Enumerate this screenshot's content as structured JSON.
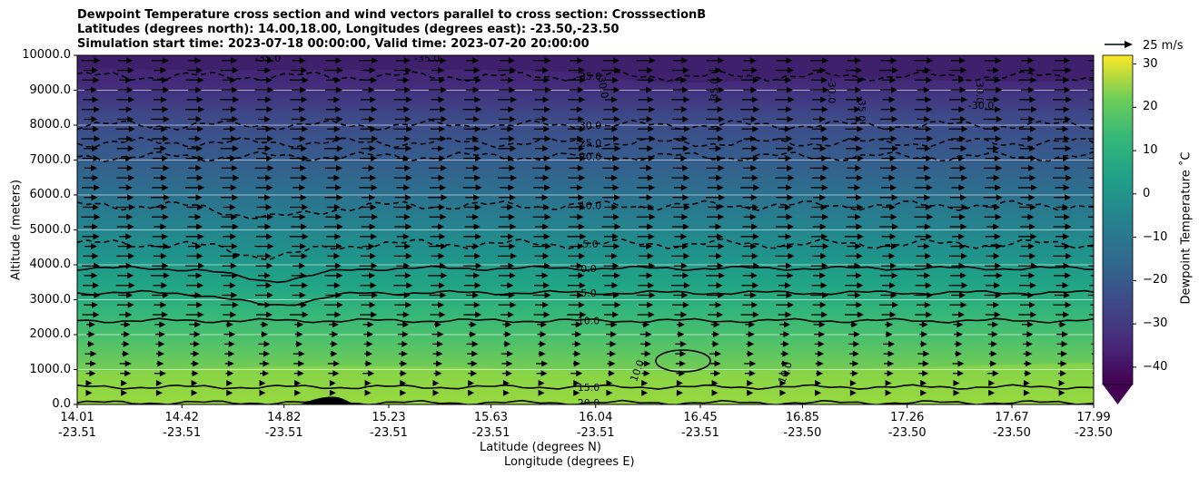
{
  "chart_data": {
    "type": "contourf",
    "title_lines": [
      "Dewpoint Temperature cross section and wind vectors parallel to cross section: CrosssectionB",
      "Latitudes (degrees north): 14.00,18.00, Longitudes (degrees east): -23.50,-23.50",
      "Simulation start time: 2023-07-18 00:00:00, Valid time: 2023-07-20 20:00:00"
    ],
    "xlabel": "Latitude (degrees N)",
    "xlabel2": "Longitude (degrees E)",
    "ylabel": "Altitude (meters)",
    "ylim": [
      0,
      10000
    ],
    "yticks": [
      "0.0",
      "1000.0",
      "2000.0",
      "3000.0",
      "4000.0",
      "5000.0",
      "6000.0",
      "7000.0",
      "8000.0",
      "9000.0",
      "10000.0"
    ],
    "xticks": [
      {
        "lat": "14.01",
        "lon": "-23.51"
      },
      {
        "lat": "14.42",
        "lon": "-23.51"
      },
      {
        "lat": "14.82",
        "lon": "-23.51"
      },
      {
        "lat": "15.23",
        "lon": "-23.51"
      },
      {
        "lat": "15.63",
        "lon": "-23.51"
      },
      {
        "lat": "16.04",
        "lon": "-23.51"
      },
      {
        "lat": "16.45",
        "lon": "-23.51"
      },
      {
        "lat": "16.85",
        "lon": "-23.50"
      },
      {
        "lat": "17.26",
        "lon": "-23.50"
      },
      {
        "lat": "17.67",
        "lon": "-23.50"
      },
      {
        "lat": "17.99",
        "lon": "-23.50"
      }
    ],
    "colorbar": {
      "label": "Dewpoint Temperature $^\\circ$C",
      "label_display": "Dewpoint Temperature ˚C",
      "ticks": [
        "30",
        "20",
        "10",
        "0",
        "−10",
        "−20",
        "−30",
        "−40"
      ],
      "range": [
        -44,
        32
      ],
      "colormap": "viridis"
    },
    "quiver_key": "25 m/s",
    "contour_lines": [
      {
        "level": 20,
        "label": "20.0",
        "label_alt": 50
      },
      {
        "level": 15,
        "label": "15.0",
        "label_alt": 500
      },
      {
        "level": 10,
        "label": "10.0",
        "label_alt": 2400
      },
      {
        "level": 5,
        "label": "5.0",
        "label_alt": 3200
      },
      {
        "level": 0,
        "label": "0.0",
        "label_alt": 3900
      },
      {
        "level": -5,
        "label": "-5.0",
        "label_alt": 4600
      },
      {
        "level": -10,
        "label": "-10.0",
        "label_alt": 5700
      },
      {
        "level": -20,
        "label": "-20.0",
        "label_alt": 7100
      },
      {
        "level": -25,
        "label": "-25.0",
        "label_alt": 7500
      },
      {
        "level": -30,
        "label": "-30.0",
        "label_alt": 8000
      },
      {
        "level": -35,
        "label": "-35.0",
        "label_alt": 9400
      }
    ],
    "extra_labels": [
      "10.0",
      "10.0",
      "-30.0",
      "-35.0",
      "-30.0",
      "-35.0",
      "-30.0",
      "-30.0",
      "-35.0",
      "-35.0"
    ],
    "grid": "horizontal"
  }
}
